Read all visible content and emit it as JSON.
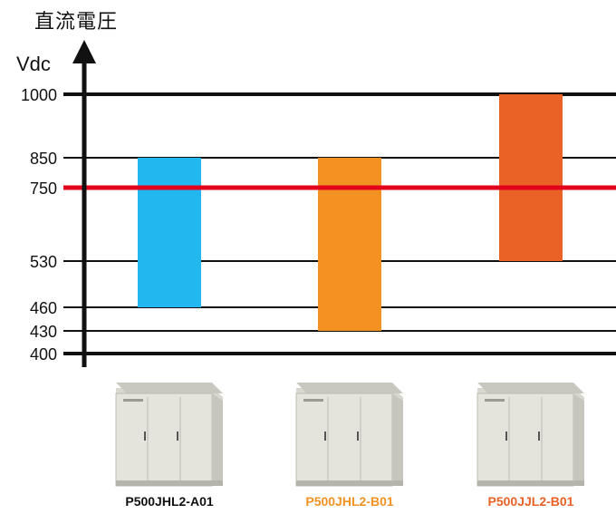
{
  "chart_data": {
    "type": "bar",
    "title": "直流電圧",
    "ylabel": "Vdc",
    "ylim": [
      400,
      1000
    ],
    "yticks": [
      400,
      430,
      460,
      530,
      750,
      850,
      1000
    ],
    "highlight_line": {
      "value": 750,
      "color": "#e3001b"
    },
    "categories": [
      "P500JHL2-A01",
      "P500JHL2-B01",
      "P500JJL2-B01"
    ],
    "series": [
      {
        "low": 460,
        "high": 850
      },
      {
        "low": 430,
        "high": 850
      },
      {
        "low": 530,
        "high": 1000
      }
    ],
    "bar_colors": [
      "#22b7ee",
      "#f39222",
      "#ea6225"
    ],
    "label_colors": [
      "#111111",
      "#f39222",
      "#ea6225"
    ]
  },
  "products": [
    {
      "label": "P500JHL2-A01",
      "image": "inverter-cabinet"
    },
    {
      "label": "P500JHL2-B01",
      "image": "inverter-cabinet"
    },
    {
      "label": "P500JJL2-B01",
      "image": "inverter-cabinet"
    }
  ]
}
